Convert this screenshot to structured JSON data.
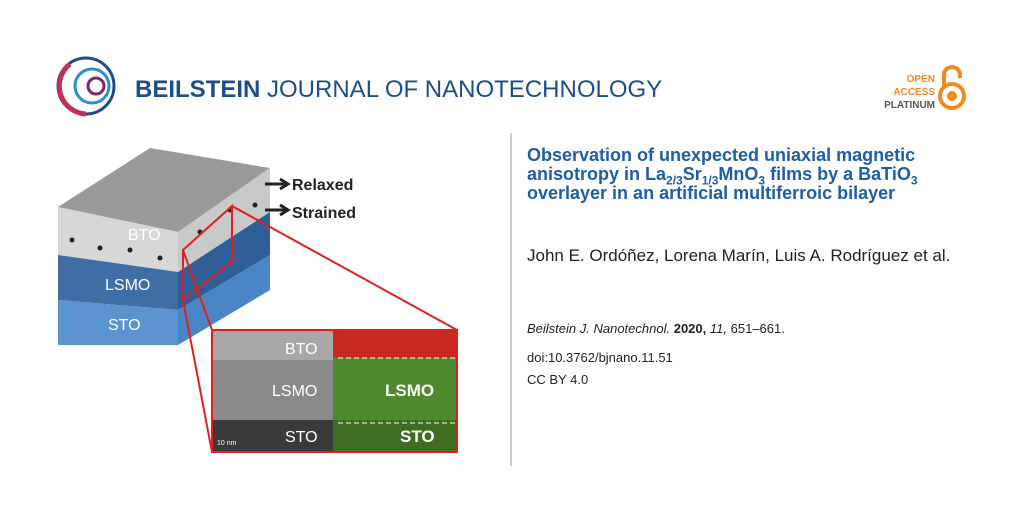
{
  "header": {
    "logo_bold": "BEILSTEIN",
    "logo_light": "JOURNAL OF NANOTECHNOLOGY",
    "badge": [
      "OPEN",
      "ACCESS",
      "PLATINUM"
    ]
  },
  "figure": {
    "arrows": [
      "Relaxed",
      "Strained"
    ],
    "layers": [
      "BTO",
      "LSMO",
      "STO"
    ],
    "tem_labels": [
      "BTO",
      "LSMO",
      "STO"
    ],
    "scale_bar": "10 nm",
    "map_labels": [
      "LSMO",
      "STO"
    ]
  },
  "article": {
    "title_parts": [
      "Observation of unexpected uniaxial magnetic anisotropy in La",
      "2/3",
      "Sr",
      "1/3",
      "MnO",
      "3",
      " films by a BaTiO",
      "3",
      " overlayer in an artificial multiferroic bilayer"
    ],
    "authors": "John E. Ordóñez, Lorena Marín, Luis A. Rodríguez et al.",
    "journal": "Beilstein J. Nanotechnol.",
    "year": "2020,",
    "volume": "11,",
    "pages": "651–661.",
    "doi": "doi:10.3762/bjnano.11.51",
    "license": "CC BY 4.0"
  }
}
